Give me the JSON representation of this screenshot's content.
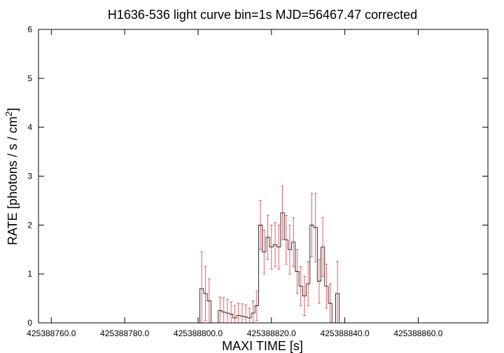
{
  "chart_data": {
    "type": "line",
    "title": "H1636-536 light curve bin=1s MJD=56467.47 corrected",
    "xlabel": "MAXI TIME [s]",
    "ylabel_main": "RATE [photons / s / cm",
    "ylabel_sup": "2",
    "ylabel_close": "]",
    "xlim": [
      425388756.5,
      425388879
    ],
    "ylim": [
      0,
      6
    ],
    "x_ticks": [
      425388760,
      425388780,
      425388800,
      425388820,
      425388840,
      425388860
    ],
    "x_tick_labels": [
      "425388760.0",
      "425388780.0",
      "425388800.0",
      "425388820.0",
      "425388840.0",
      "425388860.0"
    ],
    "y_ticks": [
      0,
      1,
      2,
      3,
      4,
      5,
      6
    ],
    "y_tick_labels": [
      "0",
      "1",
      "2",
      "3",
      "4",
      "5",
      "6"
    ],
    "grid": false,
    "legend": "none",
    "colors": {
      "data": "#000000",
      "error_bars": "#e06060"
    },
    "series": [
      {
        "x_start": 425388757,
        "bin_width": 1,
        "values": [
          0,
          0,
          0,
          0,
          0,
          0,
          0,
          0,
          0,
          0,
          0,
          0,
          0,
          0,
          0,
          0,
          0,
          0,
          0,
          0,
          0,
          0,
          0,
          0,
          0,
          0,
          0,
          0,
          0,
          0,
          0,
          0,
          0,
          0,
          0,
          0,
          0,
          0,
          0,
          0,
          0,
          0,
          0,
          0,
          0.7,
          0.6,
          0.45,
          0,
          0,
          0.25,
          0.22,
          0.2,
          0.18,
          0.1,
          0.15,
          0.14,
          0.12,
          0.1,
          0.2,
          0.35,
          2.0,
          1.45,
          1.75,
          1.55,
          1.6,
          1.55,
          2.25,
          1.7,
          1.5,
          1.65,
          1.05,
          0.75,
          0.55,
          0.8,
          2.0,
          1.95,
          0.85,
          1.55,
          0.75,
          0.4,
          0,
          0.6,
          0,
          0,
          0,
          0,
          0,
          0,
          0,
          0,
          0,
          0,
          0,
          0,
          0,
          0,
          0,
          0,
          0,
          0,
          0,
          0,
          0,
          0,
          0,
          0,
          0,
          0,
          0,
          0,
          0,
          0,
          0,
          0,
          0,
          0,
          0,
          0,
          0,
          0
        ],
        "errors": [
          0,
          0,
          0,
          0,
          0,
          0,
          0,
          0,
          0,
          0,
          0,
          0,
          0,
          0,
          0,
          0,
          0,
          0,
          0,
          0,
          0,
          0,
          0,
          0,
          0,
          0,
          0,
          0,
          0,
          0,
          0,
          0,
          0,
          0,
          0,
          0,
          0,
          0,
          0,
          0,
          0,
          0,
          0,
          0,
          0.75,
          0.55,
          0.45,
          0,
          0,
          0.28,
          0.3,
          0.28,
          0.25,
          0.25,
          0.25,
          0.25,
          0.25,
          0.2,
          0.25,
          0.3,
          0.5,
          0.45,
          0.45,
          0.45,
          0.45,
          0.45,
          0.55,
          0.5,
          0.5,
          0.5,
          0.45,
          0.4,
          0.4,
          0.45,
          0.65,
          0.7,
          0.45,
          0.6,
          0.45,
          0.4,
          0,
          0.65,
          0,
          0,
          0,
          0,
          0,
          0,
          0,
          0,
          0,
          0,
          0,
          0,
          0,
          0,
          0,
          0,
          0,
          0,
          0,
          0,
          0,
          0,
          0,
          0,
          0,
          0,
          0,
          0,
          0,
          0,
          0,
          0,
          0,
          0,
          0,
          0,
          0,
          0
        ]
      }
    ]
  }
}
